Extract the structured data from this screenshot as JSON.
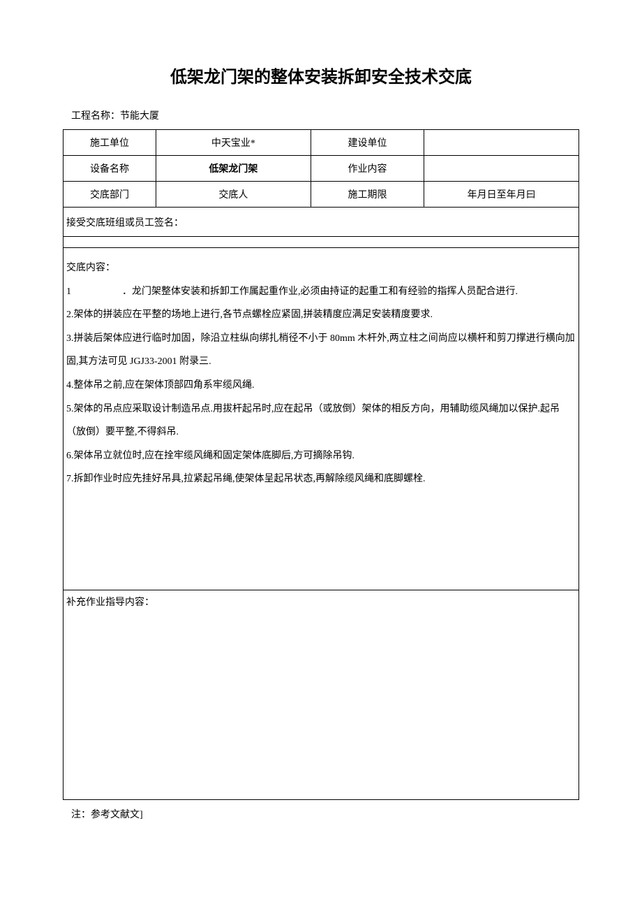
{
  "title": "低架龙门架的整体安装拆卸安全技术交底",
  "project_label": "工程名称：节能大厦",
  "table": {
    "rows": [
      {
        "c1": "施工单位",
        "c2": "中天宝业*",
        "c3": "建设单位",
        "c4": ""
      },
      {
        "c1": "设备名称",
        "c2": "低架龙门架",
        "c3": "作业内容",
        "c4": ""
      },
      {
        "c1": "交底部门",
        "c2": "交底人",
        "c3": "施工期限",
        "c4": "年月日至年月曰"
      }
    ],
    "signature_label": "接受交底班组或员工签名：",
    "content_label": "交底内容：",
    "content_items": [
      {
        "num": "1",
        "text": "．龙门架整体安装和拆卸工作属起重作业,必须由持证的起重工和有经验的指挥人员配合进行.",
        "wide": true
      },
      {
        "num": "2.",
        "text": "架体的拼装应在平整的场地上进行,各节点螺栓应紧固,拼装精度应满足安装精度要求."
      },
      {
        "num": "3.",
        "text": "拼装后架体应进行临时加固，除沿立柱纵向绑扎梢径不小于 80mm 木杆外,两立柱之间尚应以横杆和剪刀撑进行横向加固,其方法可见 JGJ33-2001 附录三."
      },
      {
        "num": "4.",
        "text": "整体吊之前,应在架体顶部四角系牢缆风绳."
      },
      {
        "num": "5.",
        "text": "架体的吊点应采取设计制造吊点.用拔杆起吊时,应在起吊（或放倒）架体的相反方向，用辅助缆风绳加以保护.起吊（放倒）要平整,不得斜吊."
      },
      {
        "num": "6.",
        "text": "架体吊立就位时,应在拴牢缆风绳和固定架体底脚后,方可摘除吊钩."
      },
      {
        "num": "7.",
        "text": "拆卸作业时应先挂好吊具,拉紧起吊绳,使架体呈起吊状态,再解除缆风绳和底脚螺栓."
      }
    ],
    "supplement_label": "补充作业指导内容："
  },
  "footnote": "注：参考文献文]"
}
